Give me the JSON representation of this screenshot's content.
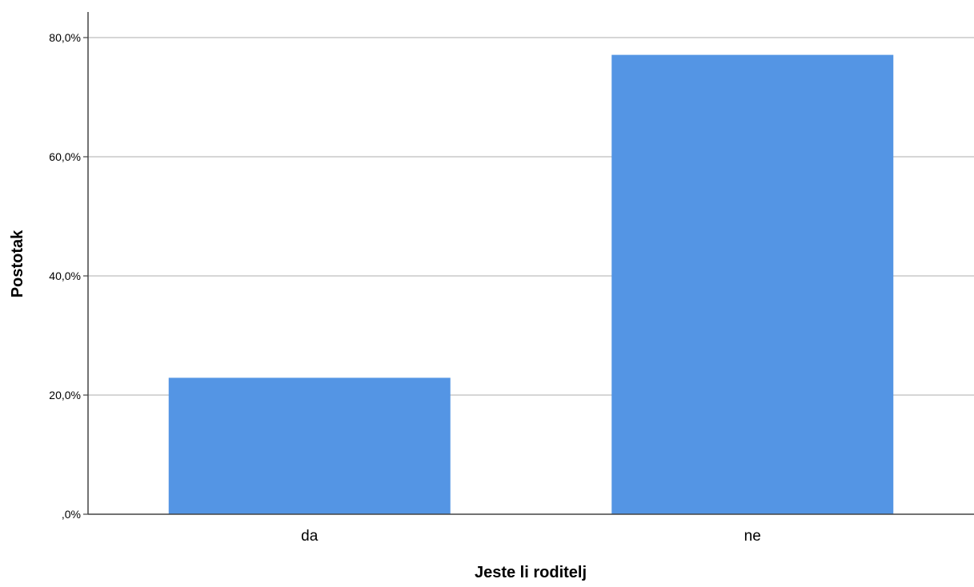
{
  "chart_data": {
    "type": "bar",
    "categories": [
      "da",
      "ne"
    ],
    "values": [
      22.9,
      77.1
    ],
    "xlabel": "Jeste li roditelj",
    "ylabel": "Postotak",
    "ylim": [
      0,
      80
    ],
    "yticks": [
      0,
      20,
      40,
      60,
      80
    ],
    "ytick_labels": [
      ",0%",
      "20,0%",
      "40,0%",
      "60,0%",
      "80,0%"
    ],
    "grid": true,
    "legend": "none",
    "colors": {
      "bar": "#5495E4",
      "grid": "#C8C8C8",
      "axis": "#444444",
      "text": "#000000"
    }
  }
}
